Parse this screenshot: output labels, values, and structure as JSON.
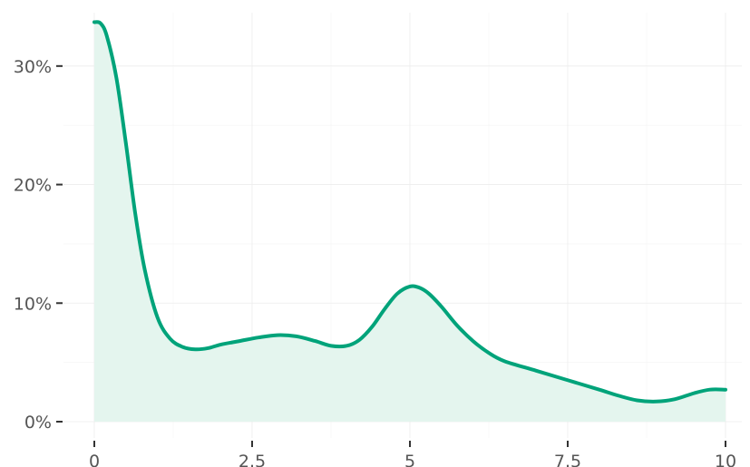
{
  "chart_data": {
    "type": "area",
    "title": "",
    "xlabel": "",
    "ylabel": "",
    "xlim": [
      0,
      10
    ],
    "ylim": [
      0,
      0.345
    ],
    "grid": true,
    "x_ticks": [
      0,
      2.5,
      5,
      7.5,
      10
    ],
    "x_tick_labels": [
      "0",
      "2.5",
      "5",
      "7.5",
      "10"
    ],
    "y_ticks": [
      0,
      0.1,
      0.2,
      0.3
    ],
    "y_tick_labels": [
      "0%",
      "10%",
      "20%",
      "30%"
    ],
    "colors": {
      "line": "#00a37a",
      "fill": "#e4f5ee"
    },
    "series": [
      {
        "x": [
          0,
          0.1,
          0.2,
          0.35,
          0.5,
          0.65,
          0.8,
          1.0,
          1.2,
          1.4,
          1.6,
          1.8,
          2.0,
          2.3,
          2.6,
          2.9,
          3.2,
          3.5,
          3.75,
          4.0,
          4.2,
          4.4,
          4.6,
          4.8,
          5.0,
          5.15,
          5.3,
          5.5,
          5.75,
          6.0,
          6.25,
          6.5,
          7.0,
          7.5,
          8.0,
          8.3,
          8.6,
          8.9,
          9.2,
          9.5,
          9.75,
          10
        ],
        "y": [
          0.337,
          0.336,
          0.325,
          0.29,
          0.235,
          0.175,
          0.128,
          0.088,
          0.07,
          0.063,
          0.061,
          0.062,
          0.065,
          0.068,
          0.071,
          0.073,
          0.072,
          0.068,
          0.064,
          0.064,
          0.069,
          0.08,
          0.095,
          0.108,
          0.114,
          0.113,
          0.108,
          0.097,
          0.081,
          0.068,
          0.058,
          0.051,
          0.043,
          0.035,
          0.027,
          0.022,
          0.018,
          0.017,
          0.019,
          0.024,
          0.027,
          0.027
        ]
      }
    ]
  }
}
